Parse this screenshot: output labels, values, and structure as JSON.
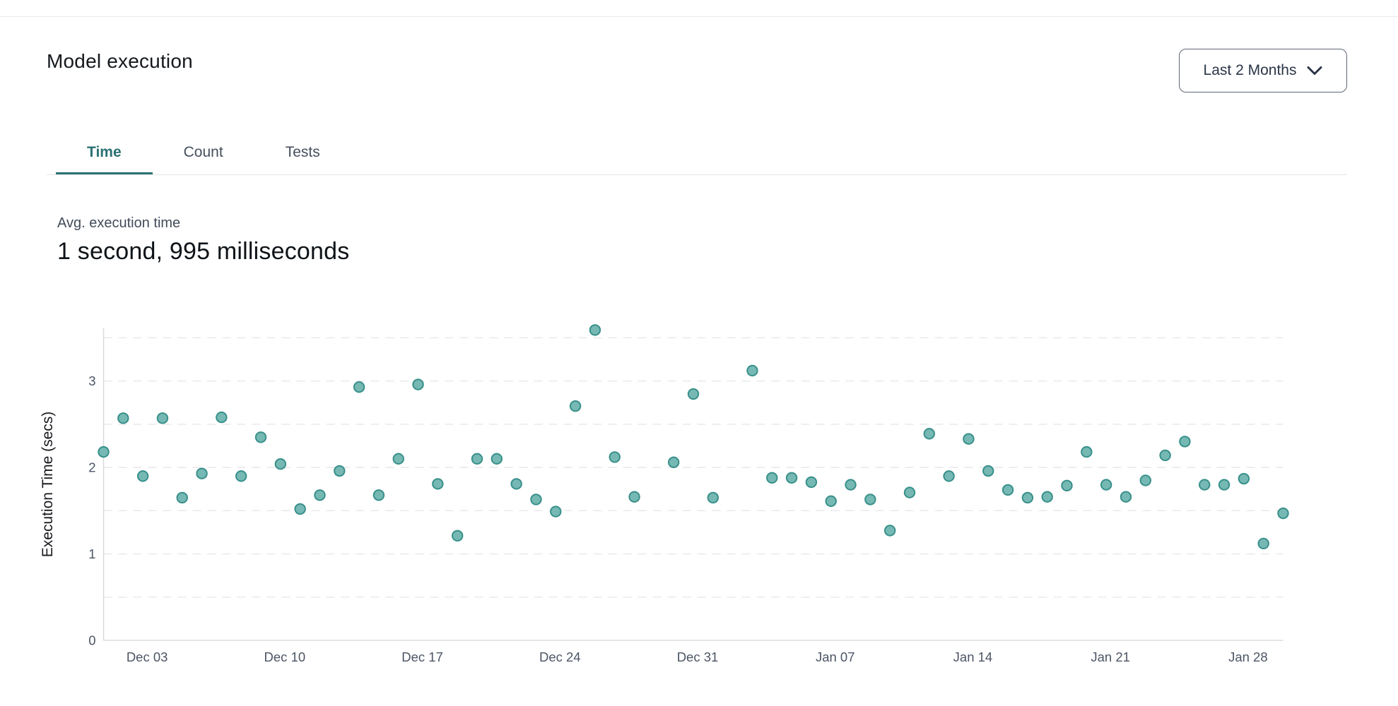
{
  "header": {
    "title": "Model execution"
  },
  "range_dropdown": {
    "label": "Last 2 Months",
    "icon": "chevron-down-icon"
  },
  "tabs": [
    {
      "label": "Time",
      "active": true
    },
    {
      "label": "Count",
      "active": false
    },
    {
      "label": "Tests",
      "active": false
    }
  ],
  "stat": {
    "label": "Avg. execution time",
    "value": "1 second, 995 milliseconds"
  },
  "chart_data": {
    "type": "scatter",
    "title": "",
    "xlabel": "",
    "ylabel": "Execution Time (secs)",
    "ylim": [
      0,
      3.61
    ],
    "y_ticks": [
      0,
      1,
      2,
      3
    ],
    "grid": "horizontal dashed lines every 0.5 secs",
    "legend": "none",
    "x_domain_days": [
      0,
      60
    ],
    "x_ticks": [
      {
        "day": 2,
        "label": "Dec 03"
      },
      {
        "day": 9,
        "label": "Dec 10"
      },
      {
        "day": 16,
        "label": "Dec 17"
      },
      {
        "day": 23,
        "label": "Dec 24"
      },
      {
        "day": 30,
        "label": "Dec 31"
      },
      {
        "day": 37,
        "label": "Jan 07"
      },
      {
        "day": 44,
        "label": "Jan 14"
      },
      {
        "day": 51,
        "label": "Jan 21"
      },
      {
        "day": 58,
        "label": "Jan 28"
      }
    ],
    "points": [
      {
        "date": "Dec 01",
        "day": 0,
        "secs": 2.18
      },
      {
        "date": "Dec 02",
        "day": 1,
        "secs": 2.57
      },
      {
        "date": "Dec 03",
        "day": 2,
        "secs": 1.9
      },
      {
        "date": "Dec 04",
        "day": 3,
        "secs": 2.57
      },
      {
        "date": "Dec 05",
        "day": 4,
        "secs": 1.65
      },
      {
        "date": "Dec 06",
        "day": 5,
        "secs": 1.93
      },
      {
        "date": "Dec 07",
        "day": 6,
        "secs": 2.58
      },
      {
        "date": "Dec 08",
        "day": 7,
        "secs": 1.9
      },
      {
        "date": "Dec 09",
        "day": 8,
        "secs": 2.35
      },
      {
        "date": "Dec 10",
        "day": 9,
        "secs": 2.04
      },
      {
        "date": "Dec 11",
        "day": 10,
        "secs": 1.52
      },
      {
        "date": "Dec 12",
        "day": 11,
        "secs": 1.68
      },
      {
        "date": "Dec 13",
        "day": 12,
        "secs": 1.96
      },
      {
        "date": "Dec 14",
        "day": 13,
        "secs": 2.93
      },
      {
        "date": "Dec 15",
        "day": 14,
        "secs": 1.68
      },
      {
        "date": "Dec 16",
        "day": 15,
        "secs": 2.1
      },
      {
        "date": "Dec 17",
        "day": 16,
        "secs": 2.96
      },
      {
        "date": "Dec 18",
        "day": 17,
        "secs": 1.81
      },
      {
        "date": "Dec 19",
        "day": 18,
        "secs": 1.21
      },
      {
        "date": "Dec 20",
        "day": 19,
        "secs": 2.1
      },
      {
        "date": "Dec 21",
        "day": 20,
        "secs": 2.1
      },
      {
        "date": "Dec 22",
        "day": 21,
        "secs": 1.81
      },
      {
        "date": "Dec 23",
        "day": 22,
        "secs": 1.63
      },
      {
        "date": "Dec 24",
        "day": 23,
        "secs": 1.49
      },
      {
        "date": "Dec 25",
        "day": 24,
        "secs": 2.71
      },
      {
        "date": "Dec 26",
        "day": 25,
        "secs": 3.59
      },
      {
        "date": "Dec 27",
        "day": 26,
        "secs": 2.12
      },
      {
        "date": "Dec 28",
        "day": 27,
        "secs": 1.66
      },
      {
        "date": "Dec 30",
        "day": 29,
        "secs": 2.06
      },
      {
        "date": "Dec 31",
        "day": 30,
        "secs": 2.85
      },
      {
        "date": "Jan 01",
        "day": 31,
        "secs": 1.65
      },
      {
        "date": "Jan 03",
        "day": 33,
        "secs": 3.12
      },
      {
        "date": "Jan 04",
        "day": 34,
        "secs": 1.88
      },
      {
        "date": "Jan 05",
        "day": 35,
        "secs": 1.88
      },
      {
        "date": "Jan 06",
        "day": 36,
        "secs": 1.83
      },
      {
        "date": "Jan 07",
        "day": 37,
        "secs": 1.61
      },
      {
        "date": "Jan 08",
        "day": 38,
        "secs": 1.8
      },
      {
        "date": "Jan 09",
        "day": 39,
        "secs": 1.63
      },
      {
        "date": "Jan 10",
        "day": 40,
        "secs": 1.27
      },
      {
        "date": "Jan 11",
        "day": 41,
        "secs": 1.71
      },
      {
        "date": "Jan 12",
        "day": 42,
        "secs": 2.39
      },
      {
        "date": "Jan 13",
        "day": 43,
        "secs": 1.9
      },
      {
        "date": "Jan 14",
        "day": 44,
        "secs": 2.33
      },
      {
        "date": "Jan 15",
        "day": 45,
        "secs": 1.96
      },
      {
        "date": "Jan 16",
        "day": 46,
        "secs": 1.74
      },
      {
        "date": "Jan 17",
        "day": 47,
        "secs": 1.65
      },
      {
        "date": "Jan 18",
        "day": 48,
        "secs": 1.66
      },
      {
        "date": "Jan 19",
        "day": 49,
        "secs": 1.79
      },
      {
        "date": "Jan 20",
        "day": 50,
        "secs": 2.18
      },
      {
        "date": "Jan 21",
        "day": 51,
        "secs": 1.8
      },
      {
        "date": "Jan 22",
        "day": 52,
        "secs": 1.66
      },
      {
        "date": "Jan 23",
        "day": 53,
        "secs": 1.85
      },
      {
        "date": "Jan 24",
        "day": 54,
        "secs": 2.14
      },
      {
        "date": "Jan 25",
        "day": 55,
        "secs": 2.3
      },
      {
        "date": "Jan 26",
        "day": 56,
        "secs": 1.8
      },
      {
        "date": "Jan 27",
        "day": 57,
        "secs": 1.8
      },
      {
        "date": "Jan 28",
        "day": 58,
        "secs": 1.87
      },
      {
        "date": "Jan 29",
        "day": 59,
        "secs": 1.12
      },
      {
        "date": "Jan 30",
        "day": 60,
        "secs": 1.47
      }
    ],
    "colors": {
      "dot_fill": "#76b8b3",
      "dot_stroke": "#38908a",
      "grid": "#e7e8ec",
      "axis": "#d8dbe0",
      "tick_text": "#4c5565",
      "ylabel_text": "#17191d"
    }
  }
}
